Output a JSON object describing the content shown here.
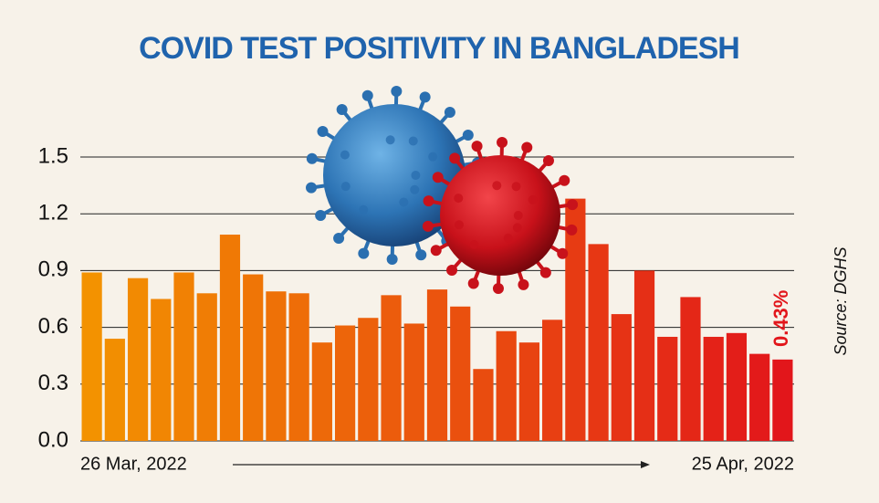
{
  "chart_data": {
    "type": "bar",
    "title": "COVID TEST POSITIVITY IN BANGLADESH",
    "source": "Source: DGHS",
    "categories": [
      "26 Mar, 2022",
      null,
      null,
      null,
      null,
      null,
      null,
      null,
      null,
      null,
      null,
      null,
      null,
      null,
      null,
      null,
      null,
      null,
      null,
      null,
      null,
      null,
      null,
      null,
      null,
      null,
      null,
      null,
      null,
      null,
      "25 Apr, 2022"
    ],
    "values": [
      0.89,
      0.54,
      0.86,
      0.75,
      0.89,
      0.78,
      1.09,
      0.88,
      0.79,
      0.78,
      0.52,
      0.61,
      0.65,
      0.77,
      0.62,
      0.8,
      0.71,
      0.38,
      0.58,
      0.52,
      0.64,
      1.28,
      1.04,
      0.67,
      0.9,
      0.55,
      0.76,
      0.55,
      0.57,
      0.46,
      0.43
    ],
    "value_labels": [
      null,
      null,
      null,
      null,
      null,
      null,
      null,
      null,
      null,
      null,
      null,
      null,
      null,
      null,
      null,
      null,
      null,
      null,
      null,
      null,
      null,
      null,
      null,
      null,
      null,
      null,
      null,
      null,
      null,
      null,
      "0.43%"
    ],
    "gradient": [
      "#f39200",
      "#e2161b"
    ],
    "ylim": [
      0,
      1.5
    ],
    "yticks": [
      {
        "value": 0,
        "label": "0.0"
      },
      0.3,
      0.6,
      0.9,
      1.2,
      1.5
    ],
    "grid": true
  }
}
